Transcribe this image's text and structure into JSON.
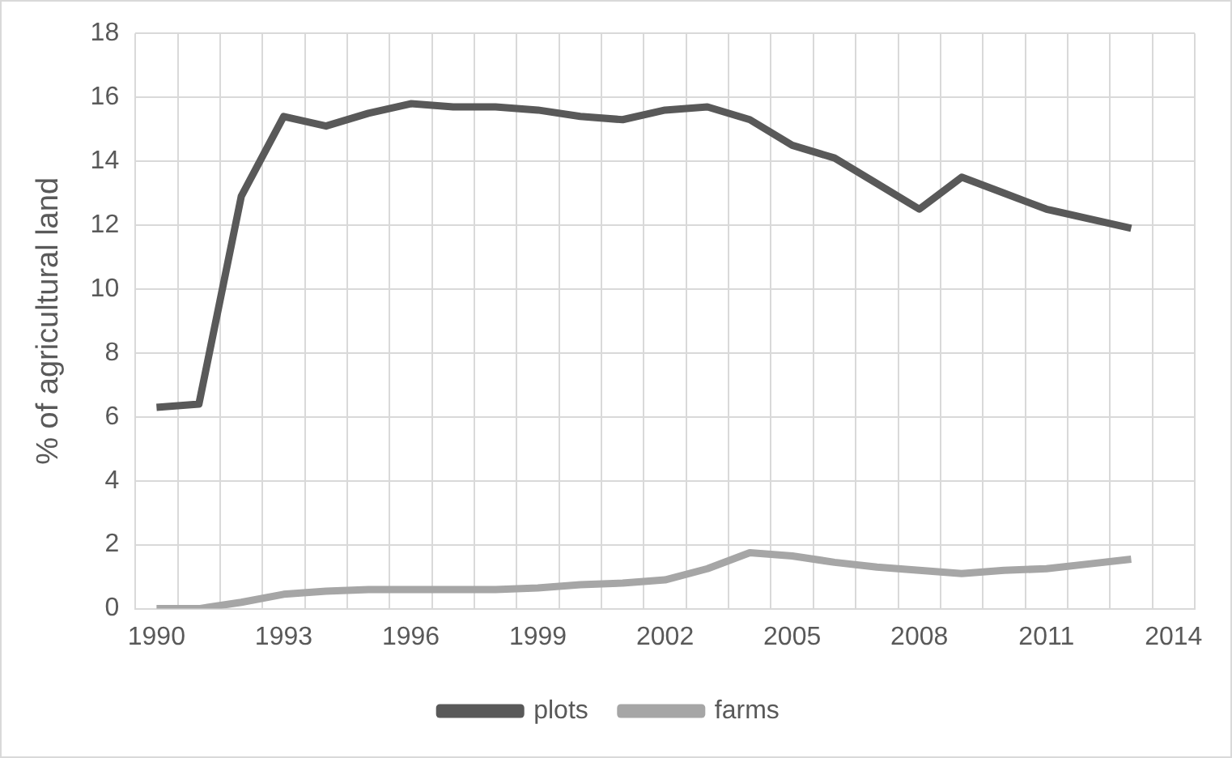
{
  "chart_data": {
    "type": "line",
    "ylabel": "% of agricultural land",
    "categories": [
      "1990",
      null,
      null,
      "1993",
      null,
      null,
      "1996",
      null,
      null,
      "1999",
      null,
      null,
      "2002",
      null,
      null,
      "2005",
      null,
      null,
      "2008",
      null,
      null,
      "2011",
      null,
      null,
      "2014"
    ],
    "series": [
      {
        "name": "plots",
        "color": "#595959",
        "values": [
          6.3,
          6.4,
          12.9,
          15.4,
          15.1,
          15.5,
          15.8,
          15.7,
          15.7,
          15.6,
          15.4,
          15.3,
          15.6,
          15.7,
          15.3,
          14.5,
          14.1,
          13.3,
          12.5,
          13.5,
          13.0,
          12.5,
          12.2,
          11.9,
          null
        ]
      },
      {
        "name": "farms",
        "color": "#a6a6a6",
        "values": [
          0,
          0,
          0.2,
          0.45,
          0.55,
          0.6,
          0.6,
          0.6,
          0.6,
          0.65,
          0.75,
          0.8,
          0.9,
          1.25,
          1.75,
          1.65,
          1.45,
          1.3,
          1.2,
          1.1,
          1.2,
          1.25,
          1.4,
          1.55,
          null
        ]
      }
    ],
    "ylim": [
      0,
      18
    ],
    "yticks": [
      0,
      2,
      4,
      6,
      8,
      10,
      12,
      14,
      16,
      18
    ],
    "grid": true,
    "legend": "bottom",
    "marker": "none",
    "line_style": "solid"
  }
}
